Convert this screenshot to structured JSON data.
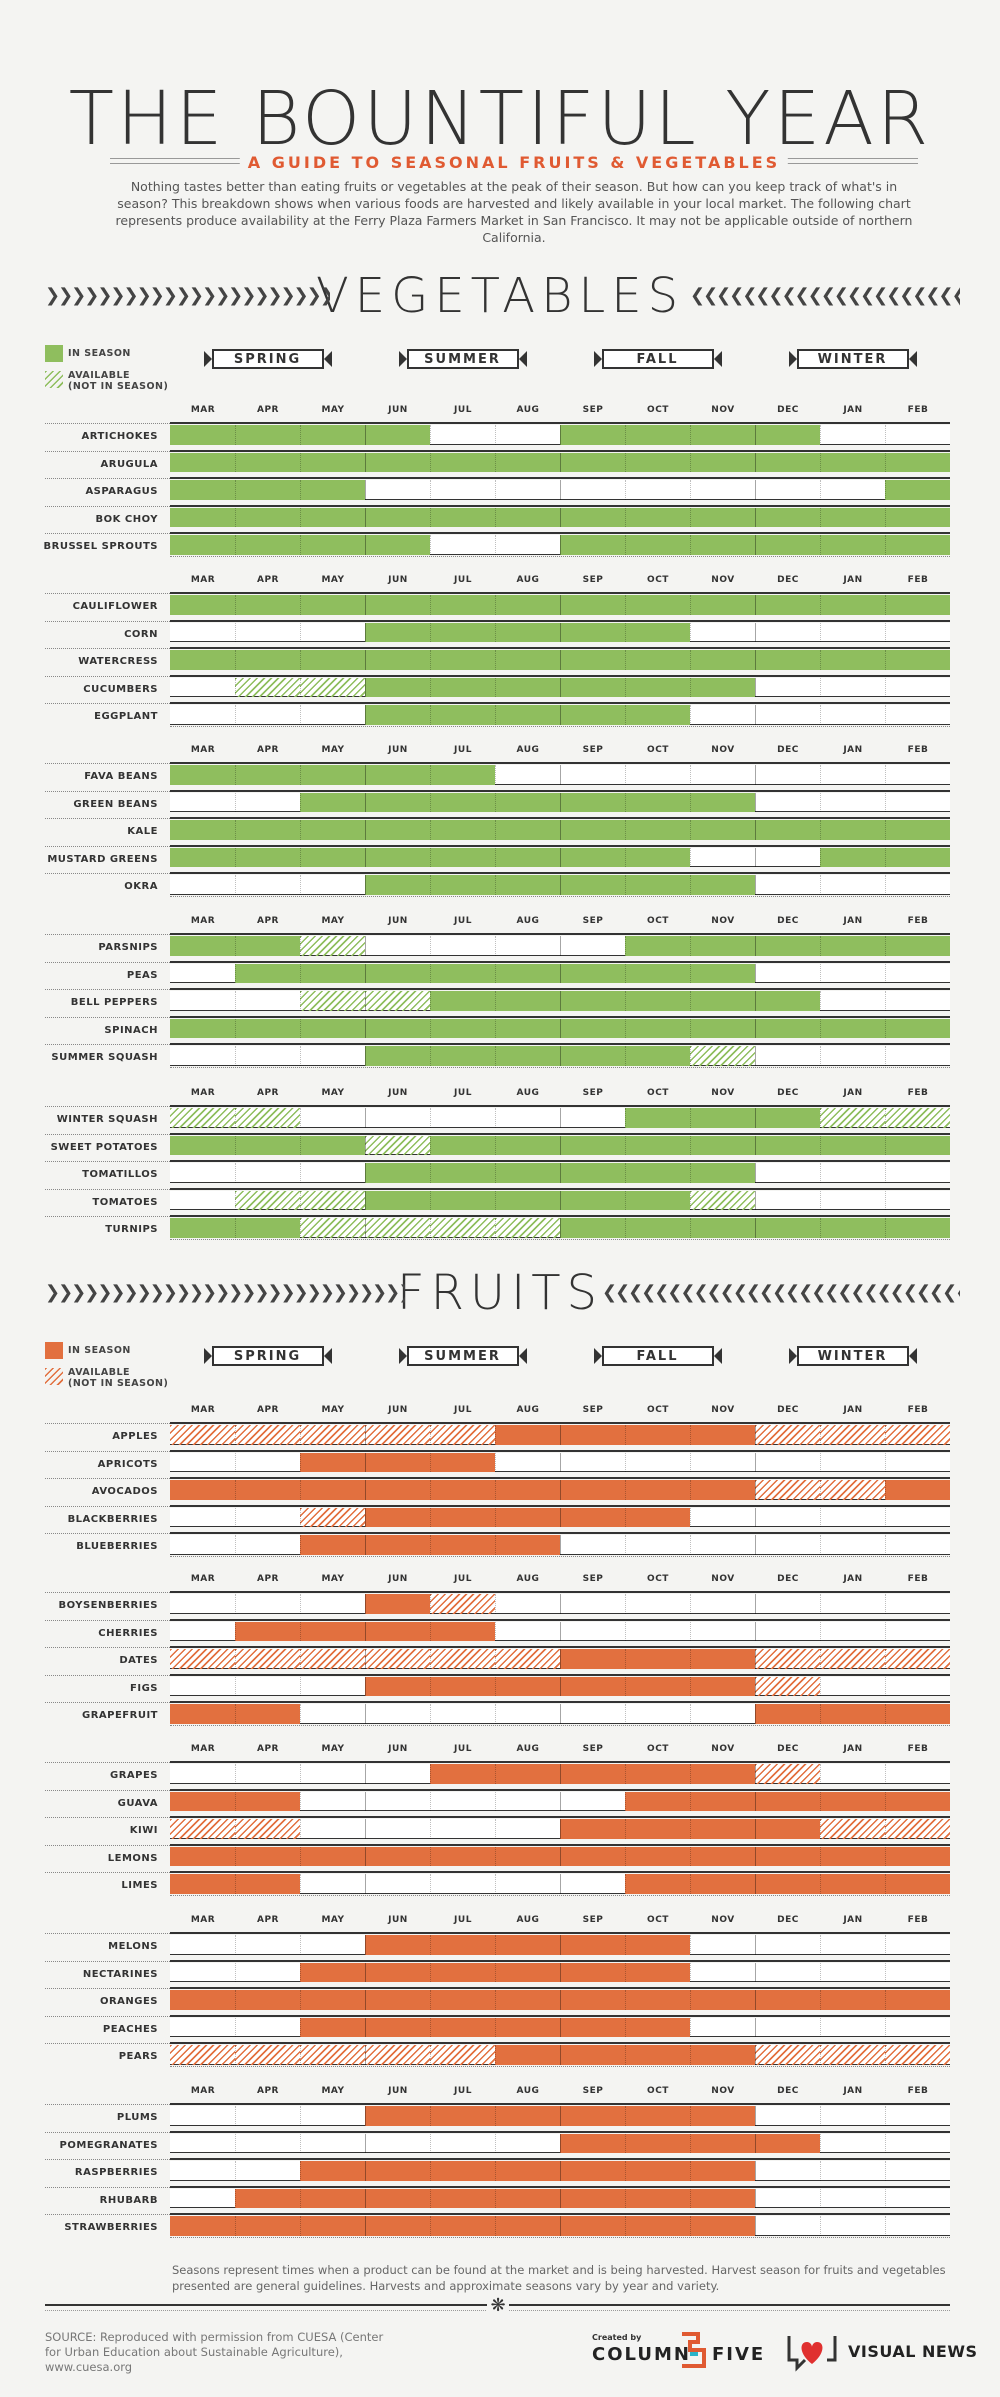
{
  "header": {
    "title": "THE BOUNTIFUL YEAR",
    "subtitle": "A GUIDE TO SEASONAL FRUITS & VEGETABLES",
    "intro": "Nothing tastes better than eating fruits or vegetables at the peak of their season. But how can you keep track of what's in season? This breakdown shows when various foods are harvested and likely available in your local market. The following chart represents produce availability at the Ferry Plaza Farmers Market in San Francisco. It may not be applicable outside of northern California."
  },
  "seasons": [
    "SPRING",
    "SUMMER",
    "FALL",
    "WINTER"
  ],
  "months": [
    "MAR",
    "APR",
    "MAY",
    "JUN",
    "JUL",
    "AUG",
    "SEP",
    "OCT",
    "NOV",
    "DEC",
    "JAN",
    "FEB"
  ],
  "legend": {
    "in_season": "IN SEASON",
    "available_1": "AVAILABLE",
    "available_2": "(NOT IN SEASON)"
  },
  "colors": {
    "veg": "#8fbe5e",
    "veg_dark": "#6da43e",
    "fruit": "#e2703f",
    "fruit_dark": "#c95a2e",
    "ink": "#333333"
  },
  "chart_data": [
    {
      "type": "table",
      "title": "VEGETABLES",
      "legend": [
        "IN SEASON",
        "AVAILABLE (NOT IN SEASON)"
      ],
      "months": [
        "MAR",
        "APR",
        "MAY",
        "JUN",
        "JUL",
        "AUG",
        "SEP",
        "OCT",
        "NOV",
        "DEC",
        "JAN",
        "FEB"
      ],
      "encoding": "per month: 2 = in season, 1 = available (not in season), 0 = not available",
      "groups": [
        [
          {
            "name": "ARTICHOKES",
            "months": [
              2,
              2,
              2,
              2,
              0,
              0,
              2,
              2,
              2,
              2,
              0,
              0
            ]
          },
          {
            "name": "ARUGULA",
            "months": [
              2,
              2,
              2,
              2,
              2,
              2,
              2,
              2,
              2,
              2,
              2,
              2
            ]
          },
          {
            "name": "ASPARAGUS",
            "months": [
              2,
              2,
              2,
              0,
              0,
              0,
              0,
              0,
              0,
              0,
              0,
              2
            ]
          },
          {
            "name": "BOK CHOY",
            "months": [
              2,
              2,
              2,
              2,
              2,
              2,
              2,
              2,
              2,
              2,
              2,
              2
            ]
          },
          {
            "name": "BRUSSEL SPROUTS",
            "months": [
              2,
              2,
              2,
              2,
              0,
              0,
              2,
              2,
              2,
              2,
              2,
              2
            ]
          }
        ],
        [
          {
            "name": "CAULIFLOWER",
            "months": [
              2,
              2,
              2,
              2,
              2,
              2,
              2,
              2,
              2,
              2,
              2,
              2
            ]
          },
          {
            "name": "CORN",
            "months": [
              0,
              0,
              0,
              2,
              2,
              2,
              2,
              2,
              0,
              0,
              0,
              0
            ]
          },
          {
            "name": "WATERCRESS",
            "months": [
              2,
              2,
              2,
              2,
              2,
              2,
              2,
              2,
              2,
              2,
              2,
              2
            ]
          },
          {
            "name": "CUCUMBERS",
            "months": [
              0,
              1,
              1,
              2,
              2,
              2,
              2,
              2,
              2,
              0,
              0,
              0
            ]
          },
          {
            "name": "EGGPLANT",
            "months": [
              0,
              0,
              0,
              2,
              2,
              2,
              2,
              2,
              0,
              0,
              0,
              0
            ]
          }
        ],
        [
          {
            "name": "FAVA BEANS",
            "months": [
              2,
              2,
              2,
              2,
              2,
              0,
              0,
              0,
              0,
              0,
              0,
              0
            ]
          },
          {
            "name": "GREEN BEANS",
            "months": [
              0,
              0,
              2,
              2,
              2,
              2,
              2,
              2,
              2,
              0,
              0,
              0
            ]
          },
          {
            "name": "KALE",
            "months": [
              2,
              2,
              2,
              2,
              2,
              2,
              2,
              2,
              2,
              2,
              2,
              2
            ]
          },
          {
            "name": "MUSTARD GREENS",
            "months": [
              2,
              2,
              2,
              2,
              2,
              2,
              2,
              2,
              0,
              0,
              2,
              2
            ]
          },
          {
            "name": "OKRA",
            "months": [
              0,
              0,
              0,
              2,
              2,
              2,
              2,
              2,
              2,
              0,
              0,
              0
            ]
          }
        ],
        [
          {
            "name": "PARSNIPS",
            "months": [
              2,
              2,
              1,
              0,
              0,
              0,
              0,
              2,
              2,
              2,
              2,
              2
            ]
          },
          {
            "name": "PEAS",
            "months": [
              0,
              2,
              2,
              2,
              2,
              2,
              2,
              2,
              2,
              0,
              0,
              0
            ]
          },
          {
            "name": "BELL PEPPERS",
            "months": [
              0,
              0,
              1,
              1,
              2,
              2,
              2,
              2,
              2,
              2,
              0,
              0
            ]
          },
          {
            "name": "SPINACH",
            "months": [
              2,
              2,
              2,
              2,
              2,
              2,
              2,
              2,
              2,
              2,
              2,
              2
            ]
          },
          {
            "name": "SUMMER SQUASH",
            "months": [
              0,
              0,
              0,
              2,
              2,
              2,
              2,
              2,
              1,
              0,
              0,
              0
            ]
          }
        ],
        [
          {
            "name": "WINTER SQUASH",
            "months": [
              1,
              1,
              0,
              0,
              0,
              0,
              0,
              2,
              2,
              2,
              1,
              1
            ]
          },
          {
            "name": "SWEET POTATOES",
            "months": [
              2,
              2,
              2,
              1,
              2,
              2,
              2,
              2,
              2,
              2,
              2,
              2
            ]
          },
          {
            "name": "TOMATILLOS",
            "months": [
              0,
              0,
              0,
              2,
              2,
              2,
              2,
              2,
              2,
              0,
              0,
              0
            ]
          },
          {
            "name": "TOMATOES",
            "months": [
              0,
              1,
              1,
              2,
              2,
              2,
              2,
              2,
              1,
              0,
              0,
              0
            ]
          },
          {
            "name": "TURNIPS",
            "months": [
              2,
              2,
              1,
              1,
              1,
              1,
              2,
              2,
              2,
              2,
              2,
              2
            ]
          }
        ]
      ]
    },
    {
      "type": "table",
      "title": "FRUITS",
      "legend": [
        "IN SEASON",
        "AVAILABLE (NOT IN SEASON)"
      ],
      "months": [
        "MAR",
        "APR",
        "MAY",
        "JUN",
        "JUL",
        "AUG",
        "SEP",
        "OCT",
        "NOV",
        "DEC",
        "JAN",
        "FEB"
      ],
      "encoding": "per month: 2 = in season, 1 = available (not in season), 0 = not available",
      "groups": [
        [
          {
            "name": "APPLES",
            "months": [
              1,
              1,
              1,
              1,
              1,
              2,
              2,
              2,
              2,
              1,
              1,
              1
            ]
          },
          {
            "name": "APRICOTS",
            "months": [
              0,
              0,
              2,
              2,
              2,
              0,
              0,
              0,
              0,
              0,
              0,
              0
            ]
          },
          {
            "name": "AVOCADOS",
            "months": [
              2,
              2,
              2,
              2,
              2,
              2,
              2,
              2,
              2,
              1,
              1,
              2
            ]
          },
          {
            "name": "BLACKBERRIES",
            "months": [
              0,
              0,
              1,
              2,
              2,
              2,
              2,
              2,
              0,
              0,
              0,
              0
            ]
          },
          {
            "name": "BLUEBERRIES",
            "months": [
              0,
              0,
              2,
              2,
              2,
              2,
              0,
              0,
              0,
              0,
              0,
              0
            ]
          }
        ],
        [
          {
            "name": "BOYSENBERRIES",
            "months": [
              0,
              0,
              0,
              2,
              1,
              0,
              0,
              0,
              0,
              0,
              0,
              0
            ]
          },
          {
            "name": "CHERRIES",
            "months": [
              0,
              2,
              2,
              2,
              2,
              0,
              0,
              0,
              0,
              0,
              0,
              0
            ]
          },
          {
            "name": "DATES",
            "months": [
              1,
              1,
              1,
              1,
              1,
              1,
              2,
              2,
              2,
              1,
              1,
              1
            ]
          },
          {
            "name": "FIGS",
            "months": [
              0,
              0,
              0,
              2,
              2,
              2,
              2,
              2,
              2,
              1,
              0,
              0
            ]
          },
          {
            "name": "GRAPEFRUIT",
            "months": [
              2,
              2,
              0,
              0,
              0,
              0,
              0,
              0,
              0,
              2,
              2,
              2
            ]
          }
        ],
        [
          {
            "name": "GRAPES",
            "months": [
              0,
              0,
              0,
              0,
              2,
              2,
              2,
              2,
              2,
              1,
              0,
              0
            ]
          },
          {
            "name": "GUAVA",
            "months": [
              2,
              2,
              0,
              0,
              0,
              0,
              0,
              2,
              2,
              2,
              2,
              2
            ]
          },
          {
            "name": "KIWI",
            "months": [
              1,
              1,
              0,
              0,
              0,
              0,
              2,
              2,
              2,
              2,
              1,
              1
            ]
          },
          {
            "name": "LEMONS",
            "months": [
              2,
              2,
              2,
              2,
              2,
              2,
              2,
              2,
              2,
              2,
              2,
              2
            ]
          },
          {
            "name": "LIMES",
            "months": [
              2,
              2,
              0,
              0,
              0,
              0,
              0,
              2,
              2,
              2,
              2,
              2
            ]
          }
        ],
        [
          {
            "name": "MELONS",
            "months": [
              0,
              0,
              0,
              2,
              2,
              2,
              2,
              2,
              0,
              0,
              0,
              0
            ]
          },
          {
            "name": "NECTARINES",
            "months": [
              0,
              0,
              2,
              2,
              2,
              2,
              2,
              2,
              0,
              0,
              0,
              0
            ]
          },
          {
            "name": "ORANGES",
            "months": [
              2,
              2,
              2,
              2,
              2,
              2,
              2,
              2,
              2,
              2,
              2,
              2
            ]
          },
          {
            "name": "PEACHES",
            "months": [
              0,
              0,
              2,
              2,
              2,
              2,
              2,
              2,
              0,
              0,
              0,
              0
            ]
          },
          {
            "name": "PEARS",
            "months": [
              1,
              1,
              1,
              1,
              1,
              2,
              2,
              2,
              2,
              1,
              1,
              1
            ]
          }
        ],
        [
          {
            "name": "PLUMS",
            "months": [
              0,
              0,
              0,
              2,
              2,
              2,
              2,
              2,
              2,
              0,
              0,
              0
            ]
          },
          {
            "name": "POMEGRANATES",
            "months": [
              0,
              0,
              0,
              0,
              0,
              0,
              2,
              2,
              2,
              2,
              0,
              0
            ]
          },
          {
            "name": "RASPBERRIES",
            "months": [
              0,
              0,
              2,
              2,
              2,
              2,
              2,
              2,
              2,
              0,
              0,
              0
            ]
          },
          {
            "name": "RHUBARB",
            "months": [
              0,
              2,
              2,
              2,
              2,
              2,
              2,
              2,
              2,
              0,
              0,
              0
            ]
          },
          {
            "name": "STRAWBERRIES",
            "months": [
              2,
              2,
              2,
              2,
              2,
              2,
              2,
              2,
              2,
              0,
              0,
              0
            ]
          }
        ]
      ]
    }
  ],
  "footnote": "Seasons represent times when a product can be found at the market and is being harvested. Harvest season for fruits and vegetables presented are general guidelines. Harvests and approximate seasons vary by year and variety.",
  "source": "SOURCE: Reproduced with permission from CUESA (Center for Urban Education about Sustainable Agriculture), www.cuesa.org",
  "credits": {
    "created_by": "Created by",
    "column": "COLUMN",
    "five": "FIVE",
    "visual_news": "VISUAL NEWS"
  }
}
